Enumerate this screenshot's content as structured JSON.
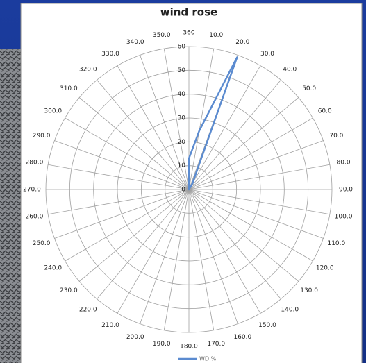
{
  "chart_data": {
    "type": "radar",
    "title": "wind rose",
    "categories": [
      "360",
      "10.0",
      "20.0",
      "30.0",
      "40.0",
      "50.0",
      "60.0",
      "70.0",
      "80.0",
      "90.0",
      "100.0",
      "110.0",
      "120.0",
      "130.0",
      "140.0",
      "150.0",
      "160.0",
      "170.0",
      "180.0",
      "190.0",
      "200.0",
      "210.0",
      "220.0",
      "230.0",
      "240.0",
      "250.0",
      "260.0",
      "270.0",
      "280.0",
      "290.0",
      "300.0",
      "310.0",
      "320.0",
      "330.0",
      "340.0",
      "350.0"
    ],
    "series": [
      {
        "name": "WD %",
        "color": "#5b8bd0",
        "values": [
          13,
          25,
          59,
          3,
          0,
          0,
          0,
          0,
          0,
          0,
          0,
          0,
          0,
          0,
          0,
          0,
          0,
          0,
          0,
          0,
          0,
          0,
          0,
          0,
          0,
          0,
          0,
          0,
          0,
          0,
          0,
          0,
          0,
          0,
          0,
          0
        ]
      }
    ],
    "ylim": [
      0,
      60
    ],
    "yticks": [
      0,
      10,
      20,
      30,
      40,
      50,
      60
    ],
    "grid": true,
    "legend": "bottom"
  }
}
